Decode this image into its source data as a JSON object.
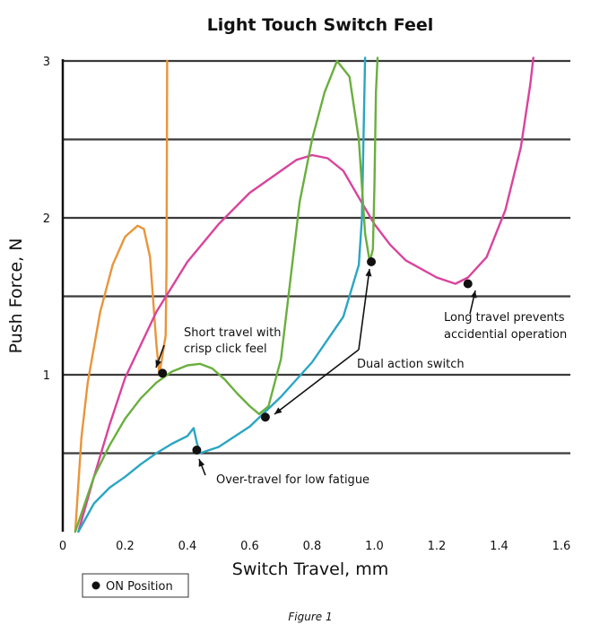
{
  "chart_data": {
    "type": "line",
    "title": "Light Touch Switch Feel",
    "xlabel": "Switch Travel, mm",
    "ylabel": "Push Force, N",
    "xlim": [
      0,
      1.6
    ],
    "ylim": [
      0,
      3
    ],
    "xticks": [
      "0",
      "0.2",
      "0.4",
      "0.6",
      "0.8",
      "1.0",
      "1.2",
      "1.4",
      "1.6"
    ],
    "yticks": [
      "1",
      "2",
      "3"
    ],
    "gridlines_y": [
      0.5,
      1.0,
      1.5,
      2.0,
      2.5,
      3.0
    ],
    "grid": "horizontal",
    "series": [
      {
        "color": "#e8953a",
        "points": [
          [
            0.04,
            0
          ],
          [
            0.06,
            0.6
          ],
          [
            0.08,
            0.95
          ],
          [
            0.12,
            1.4
          ],
          [
            0.16,
            1.7
          ],
          [
            0.2,
            1.88
          ],
          [
            0.24,
            1.95
          ],
          [
            0.26,
            1.93
          ],
          [
            0.28,
            1.75
          ],
          [
            0.3,
            1.2
          ],
          [
            0.31,
            1.0
          ],
          [
            0.33,
            1.25
          ],
          [
            0.333,
            1.7
          ],
          [
            0.335,
            3.0
          ]
        ]
      },
      {
        "color": "#d9439c",
        "points": [
          [
            0.05,
            0
          ],
          [
            0.1,
            0.35
          ],
          [
            0.15,
            0.68
          ],
          [
            0.2,
            0.98
          ],
          [
            0.3,
            1.4
          ],
          [
            0.4,
            1.72
          ],
          [
            0.5,
            1.96
          ],
          [
            0.6,
            2.16
          ],
          [
            0.7,
            2.3
          ],
          [
            0.75,
            2.37
          ],
          [
            0.8,
            2.4
          ],
          [
            0.85,
            2.38
          ],
          [
            0.9,
            2.3
          ],
          [
            0.95,
            2.13
          ],
          [
            1.0,
            1.96
          ],
          [
            1.05,
            1.83
          ],
          [
            1.1,
            1.73
          ],
          [
            1.2,
            1.62
          ],
          [
            1.26,
            1.58
          ],
          [
            1.3,
            1.62
          ],
          [
            1.36,
            1.75
          ],
          [
            1.42,
            2.05
          ],
          [
            1.47,
            2.45
          ],
          [
            1.5,
            2.85
          ],
          [
            1.51,
            3.02
          ]
        ]
      },
      {
        "color": "#2aa6c2",
        "points": [
          [
            0.05,
            0
          ],
          [
            0.1,
            0.18
          ],
          [
            0.15,
            0.28
          ],
          [
            0.2,
            0.35
          ],
          [
            0.25,
            0.43
          ],
          [
            0.3,
            0.5
          ],
          [
            0.35,
            0.56
          ],
          [
            0.4,
            0.61
          ],
          [
            0.42,
            0.66
          ],
          [
            0.43,
            0.57
          ],
          [
            0.44,
            0.5
          ],
          [
            0.5,
            0.54
          ],
          [
            0.6,
            0.67
          ],
          [
            0.7,
            0.86
          ],
          [
            0.8,
            1.08
          ],
          [
            0.9,
            1.37
          ],
          [
            0.95,
            1.7
          ],
          [
            0.96,
            2.0
          ],
          [
            0.965,
            2.5
          ],
          [
            0.97,
            3.02
          ]
        ]
      },
      {
        "color": "#6aaf3e",
        "points": [
          [
            0.04,
            0
          ],
          [
            0.1,
            0.35
          ],
          [
            0.15,
            0.55
          ],
          [
            0.2,
            0.72
          ],
          [
            0.25,
            0.85
          ],
          [
            0.3,
            0.95
          ],
          [
            0.35,
            1.02
          ],
          [
            0.4,
            1.06
          ],
          [
            0.44,
            1.07
          ],
          [
            0.48,
            1.04
          ],
          [
            0.52,
            0.97
          ],
          [
            0.56,
            0.88
          ],
          [
            0.6,
            0.8
          ],
          [
            0.63,
            0.75
          ],
          [
            0.66,
            0.8
          ],
          [
            0.7,
            1.1
          ],
          [
            0.73,
            1.6
          ],
          [
            0.76,
            2.1
          ],
          [
            0.8,
            2.5
          ],
          [
            0.84,
            2.8
          ],
          [
            0.88,
            3.0
          ],
          [
            0.92,
            2.9
          ],
          [
            0.95,
            2.5
          ],
          [
            0.97,
            1.9
          ],
          [
            0.985,
            1.72
          ],
          [
            0.995,
            1.8
          ],
          [
            1.0,
            2.2
          ],
          [
            1.005,
            2.8
          ],
          [
            1.01,
            3.02
          ]
        ]
      }
    ],
    "on_positions": [
      [
        0.32,
        1.01
      ],
      [
        0.43,
        0.52
      ],
      [
        0.65,
        0.73
      ],
      [
        0.99,
        1.72
      ],
      [
        1.3,
        1.58
      ]
    ],
    "annotations": [
      {
        "id": "short",
        "lines": [
          "Short travel with",
          "crisp click feel"
        ]
      },
      {
        "id": "dual",
        "lines": [
          "Dual action switch"
        ]
      },
      {
        "id": "long",
        "lines": [
          "Long travel prevents",
          "accidential operation"
        ]
      },
      {
        "id": "over",
        "lines": [
          "Over-travel for low fatigue"
        ]
      }
    ],
    "legend": {
      "label": "ON Position",
      "placement": "bottom-left"
    }
  },
  "caption": "Figure 1"
}
